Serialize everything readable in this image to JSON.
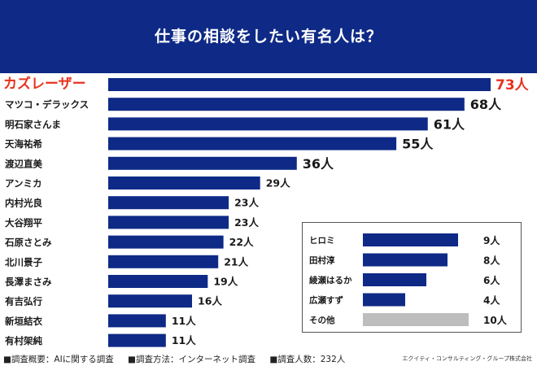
{
  "title": "仕事の相談をしたい有名人は？",
  "colors": {
    "header": "#0e2a86",
    "bar": "#0e2a86",
    "highlight": "#e8321e",
    "other": "#bdbdbd",
    "text": "#1a1a1a"
  },
  "chart_data": [
    {
      "type": "bar",
      "orientation": "horizontal",
      "title": "仕事の相談をしたい有名人は？",
      "unit": "人",
      "categories": [
        "カズレーザー",
        "マツコ・デラックス",
        "明石家さんま",
        "天海祐希",
        "渡辺直美",
        "アンミカ",
        "内村光良",
        "大谷翔平",
        "石原さとみ",
        "北川景子",
        "長澤まさみ",
        "有吉弘行",
        "新垣結衣",
        "有村架純"
      ],
      "values": [
        73,
        68,
        61,
        55,
        36,
        29,
        23,
        23,
        22,
        21,
        19,
        16,
        11,
        11
      ],
      "value_labels": [
        "73人",
        "68人",
        "61人",
        "55人",
        "36人",
        "29人",
        "23人",
        "23人",
        "22人",
        "21人",
        "19人",
        "16人",
        "11人",
        "11人"
      ],
      "highlight_index": 0,
      "xlim": [
        0,
        73
      ]
    },
    {
      "type": "bar",
      "orientation": "horizontal",
      "title": "",
      "unit": "人",
      "categories": [
        "ヒロミ",
        "田村淳",
        "綾瀬はるか",
        "広瀬すず",
        "その他"
      ],
      "values": [
        9,
        8,
        6,
        4,
        10
      ],
      "value_labels": [
        "9人",
        "8人",
        "6人",
        "4人",
        "10人"
      ],
      "other_index": 4,
      "xlim": [
        0,
        10
      ]
    }
  ],
  "footer": {
    "notes": [
      "■調査概要：AIに関する調査",
      "■調査方法：インターネット調査",
      "■調査人数：232人"
    ],
    "company": "エクイティ・コンサルティング・グループ株式会社"
  }
}
